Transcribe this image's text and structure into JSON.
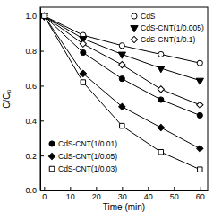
{
  "chart_data": {
    "type": "line",
    "x_label": "Time (min)",
    "y_label": "C/C₀",
    "x": [
      0,
      15,
      30,
      45,
      60
    ],
    "xlim": [
      -1.5,
      63
    ],
    "xticks": [
      0,
      10,
      20,
      30,
      40,
      50,
      60
    ],
    "ylim": [
      0,
      1.05
    ],
    "yticks": [
      {
        "value": 0,
        "label": "0.0"
      },
      0.2,
      0.4,
      0.6,
      0.8,
      {
        "value": 1,
        "label": "1.0"
      }
    ],
    "grid": false,
    "legend": "upper right",
    "series": [
      {
        "name": "CdS",
        "color": "#000000",
        "marker": "circle-open",
        "line_style": "solid",
        "values": [
          1.0,
          0.89,
          0.83,
          0.78,
          0.73
        ]
      },
      {
        "name": "CdS-CNT(1/0.005)",
        "color": "#000000",
        "marker": "triangle-down",
        "line_style": "solid",
        "values": [
          1.0,
          0.87,
          0.78,
          0.7,
          0.63
        ]
      },
      {
        "name": "CdS-CNT(1/0.1)",
        "color": "#000000",
        "marker": "diamond-open",
        "line_style": "solid",
        "values": [
          1.0,
          0.84,
          0.72,
          0.58,
          0.49
        ]
      },
      {
        "name": "CdS-CNT(1/0.01)",
        "color": "#000000",
        "marker": "circle",
        "line_style": "solid",
        "values": [
          1.0,
          0.79,
          0.64,
          0.52,
          0.43
        ]
      },
      {
        "name": "CdS-CNT(1/0.05)",
        "color": "#000000",
        "marker": "diamond",
        "line_style": "solid",
        "values": [
          1.0,
          0.67,
          0.48,
          0.36,
          0.24
        ]
      },
      {
        "name": "CdS-CNT(1/0.03)",
        "color": "#000000",
        "marker": "square-open",
        "line_style": "solid",
        "values": [
          1.0,
          0.62,
          0.37,
          0.22,
          0.12
        ]
      }
    ]
  }
}
